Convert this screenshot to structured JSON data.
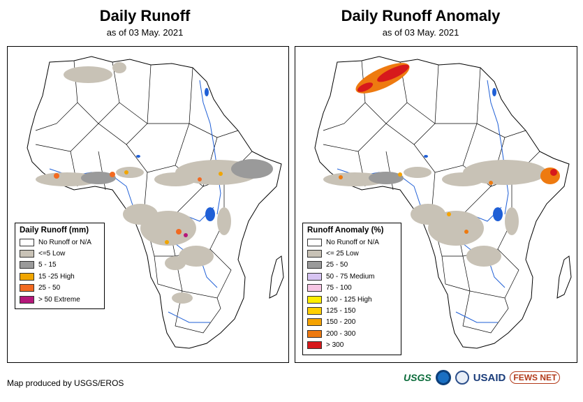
{
  "left": {
    "title": "Daily Runoff",
    "subtitle": "as of 03 May. 2021",
    "legend": {
      "title": "Daily Runoff (mm)",
      "items": [
        {
          "label": "No Runoff or N/A",
          "color": "#ffffff"
        },
        {
          "label": "<=5 Low",
          "color": "#c8c2b6"
        },
        {
          "label": "5 - 15",
          "color": "#9a9a9a"
        },
        {
          "label": "15 -25 High",
          "color": "#f0a500"
        },
        {
          "label": "25 - 50",
          "color": "#f26a21"
        },
        {
          "label": "> 50 Extreme",
          "color": "#b5177a"
        }
      ]
    }
  },
  "right": {
    "title": "Daily Runoff Anomaly",
    "subtitle": "as of 03 May. 2021",
    "legend": {
      "title": "Runoff Anomaly (%)",
      "items": [
        {
          "label": "No Runoff or N/A",
          "color": "#ffffff"
        },
        {
          "label": "<= 25 Low",
          "color": "#c8c2b6"
        },
        {
          "label": "25 - 50",
          "color": "#9a9a9a"
        },
        {
          "label": "50 - 75 Medium",
          "color": "#d7c4f2"
        },
        {
          "label": "75 - 100",
          "color": "#f7c6e4"
        },
        {
          "label": "100 - 125 High",
          "color": "#ffee00"
        },
        {
          "label": "125 - 150",
          "color": "#ffd000"
        },
        {
          "label": "150 - 200",
          "color": "#f5a300"
        },
        {
          "label": "200 - 300",
          "color": "#ee7a10"
        },
        {
          "label": "> 300",
          "color": "#d7191c"
        }
      ]
    }
  },
  "footer": {
    "credit": "Map produced by USGS/EROS",
    "logos": {
      "usgs": "USGS",
      "usaid": "USAID",
      "fews": "FEWS NET"
    }
  },
  "colors": {
    "border": "#000000",
    "water": "#1f5fd6",
    "land": "#ffffff"
  }
}
